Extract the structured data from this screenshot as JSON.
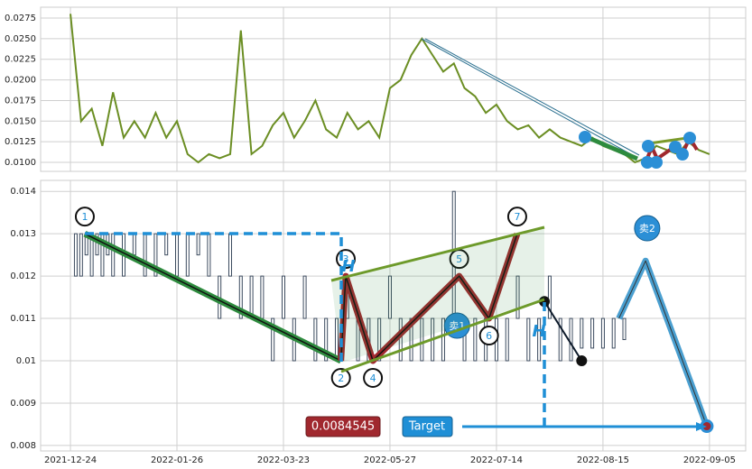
{
  "chart_data": [
    {
      "type": "line",
      "color": "#6b8e23",
      "x": [
        0,
        2,
        4,
        6,
        8,
        10,
        12,
        14,
        16,
        18,
        20,
        22,
        24,
        26,
        28,
        30,
        32,
        34,
        36,
        38,
        40,
        42,
        44,
        46,
        48,
        50,
        52,
        54,
        56,
        58,
        60,
        62,
        64,
        66,
        68,
        70,
        72,
        74,
        76,
        78,
        80,
        82,
        84,
        86,
        88,
        90,
        92,
        94,
        96,
        98,
        100,
        102,
        104,
        106,
        108,
        110,
        112,
        114,
        116,
        118,
        120
      ],
      "values": [
        0.028,
        0.015,
        0.0165,
        0.012,
        0.0185,
        0.013,
        0.015,
        0.013,
        0.016,
        0.013,
        0.015,
        0.011,
        0.01,
        0.011,
        0.0105,
        0.011,
        0.026,
        0.011,
        0.012,
        0.0145,
        0.016,
        0.013,
        0.015,
        0.0175,
        0.014,
        0.013,
        0.016,
        0.014,
        0.015,
        0.013,
        0.019,
        0.02,
        0.023,
        0.025,
        0.023,
        0.021,
        0.022,
        0.019,
        0.018,
        0.016,
        0.017,
        0.015,
        0.014,
        0.0145,
        0.013,
        0.014,
        0.013,
        0.0125,
        0.012,
        0.013,
        0.012,
        0.0115,
        0.011,
        0.01,
        0.0105,
        0.012,
        0.0115,
        0.011,
        0.0125,
        0.0115,
        0.011
      ],
      "xlim": [
        -5.6,
        126.8
      ],
      "ylim": [
        0.00891,
        0.02881
      ],
      "yticks": [
        {
          "value": 0.01,
          "label": "0.0100"
        },
        0.0125,
        {
          "value": 0.015,
          "label": "0.0150"
        },
        0.0175,
        {
          "value": 0.02,
          "label": "0.0200"
        },
        0.0225,
        {
          "value": 0.025,
          "label": "0.0250"
        },
        0.0275
      ],
      "grid": true
    },
    {
      "type": "range",
      "color": "#3b4a5e",
      "x": [
        1,
        2,
        3,
        4,
        5,
        6,
        7,
        8,
        10,
        12,
        14,
        16,
        18,
        20,
        22,
        24,
        26,
        28,
        30,
        32,
        34,
        36,
        38,
        40,
        42,
        44,
        46,
        48,
        50,
        52,
        54,
        56,
        58,
        60,
        62,
        64,
        66,
        68,
        70,
        72,
        74,
        76,
        78,
        80,
        82,
        84,
        86,
        88,
        90,
        92,
        94,
        96,
        98,
        100,
        102,
        104
      ],
      "low": [
        0.012,
        0.012,
        0.0125,
        0.012,
        0.0125,
        0.012,
        0.0125,
        0.012,
        0.012,
        0.0125,
        0.012,
        0.012,
        0.0125,
        0.012,
        0.012,
        0.0125,
        0.012,
        0.011,
        0.012,
        0.011,
        0.011,
        0.011,
        0.01,
        0.011,
        0.01,
        0.011,
        0.01,
        0.01,
        0.01,
        0.011,
        0.01,
        0.01,
        0.01,
        0.011,
        0.01,
        0.01,
        0.01,
        0.01,
        0.01,
        0.011,
        0.01,
        0.01,
        0.01,
        0.01,
        0.01,
        0.011,
        0.01,
        0.01,
        0.011,
        0.01,
        0.01,
        0.0103,
        0.0103,
        0.0103,
        0.0103,
        0.0105
      ],
      "high": [
        0.013,
        0.013,
        0.013,
        0.013,
        0.013,
        0.013,
        0.013,
        0.013,
        0.013,
        0.013,
        0.013,
        0.013,
        0.013,
        0.013,
        0.013,
        0.013,
        0.013,
        0.012,
        0.013,
        0.012,
        0.012,
        0.012,
        0.011,
        0.012,
        0.011,
        0.012,
        0.011,
        0.011,
        0.011,
        0.012,
        0.011,
        0.011,
        0.011,
        0.012,
        0.011,
        0.011,
        0.011,
        0.011,
        0.011,
        0.014,
        0.011,
        0.011,
        0.011,
        0.011,
        0.011,
        0.012,
        0.011,
        0.011,
        0.012,
        0.011,
        0.011,
        0.011,
        0.011,
        0.011,
        0.011,
        0.011
      ],
      "pattern_x": [
        2.7,
        50.8,
        51.7,
        56.8,
        73,
        78.6,
        83.9
      ],
      "pattern_y": [
        0.013,
        0.01,
        0.012,
        0.01,
        0.012,
        0.011,
        0.013
      ],
      "pattern_labels": [
        "1",
        "2",
        "3",
        "4",
        "5",
        "6",
        "7"
      ],
      "exit_x": [
        89,
        96
      ],
      "exit_y": [
        0.0114,
        0.01
      ],
      "forecast_x": [
        103,
        108,
        119.5
      ],
      "forecast_y": [
        0.011,
        0.01236,
        0.0084545
      ],
      "signals": [
        {
          "label": "卖1",
          "x": 72.6,
          "y": 0.01083
        },
        {
          "label": "卖2",
          "x": 108.3,
          "y": 0.01313
        }
      ],
      "h_labels": [
        "H",
        "H"
      ],
      "target_label": "Target",
      "xlim": [
        -5.6,
        126.8
      ],
      "ylim": [
        0.00787,
        0.01426
      ],
      "xticks": [
        {
          "value": 0,
          "label": "2021-12-24"
        },
        {
          "value": 20,
          "label": "2022-01-26"
        },
        {
          "value": 40,
          "label": "2022-03-23"
        },
        {
          "value": 60,
          "label": "2022-05-27"
        },
        {
          "value": 80,
          "label": "2022-07-14"
        },
        {
          "value": 100,
          "label": "2022-08-15"
        },
        {
          "value": 120,
          "label": "2022-09-05"
        }
      ],
      "yticks": [
        0.008,
        0.009,
        0.01,
        0.011,
        0.012,
        0.013,
        0.014
      ],
      "grid": true
    }
  ]
}
